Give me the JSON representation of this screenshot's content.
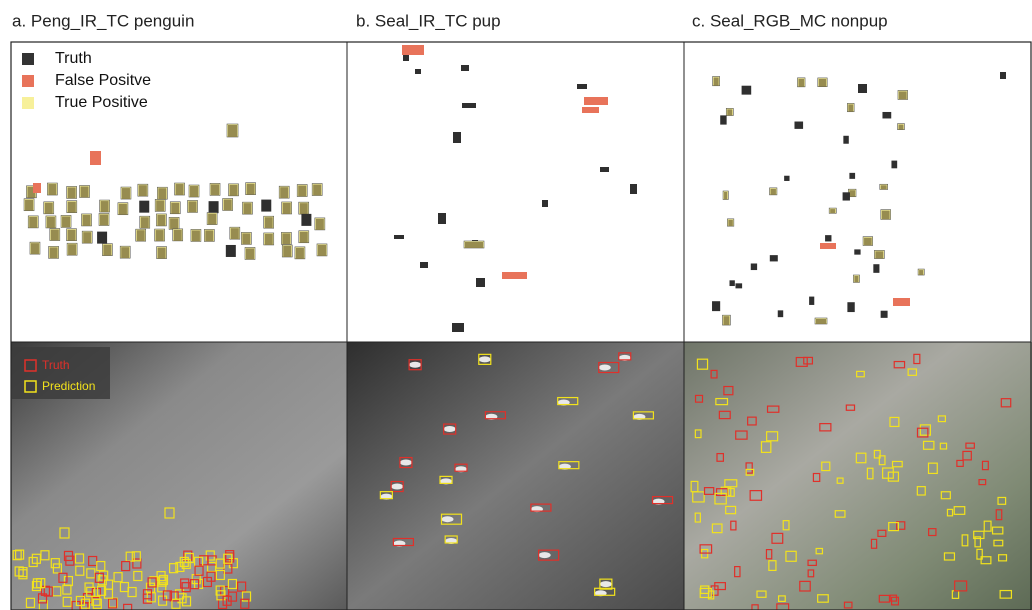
{
  "panels": [
    {
      "title": "a. Peng_IR_TC penguin"
    },
    {
      "title": "b. Seal_IR_TC pup"
    },
    {
      "title": "c. Seal_RGB_MC nonpup"
    }
  ],
  "legend_top": [
    "Truth",
    "False Positve",
    "True Positive"
  ],
  "legend_bottom": [
    "Truth",
    "Prediction"
  ]
}
